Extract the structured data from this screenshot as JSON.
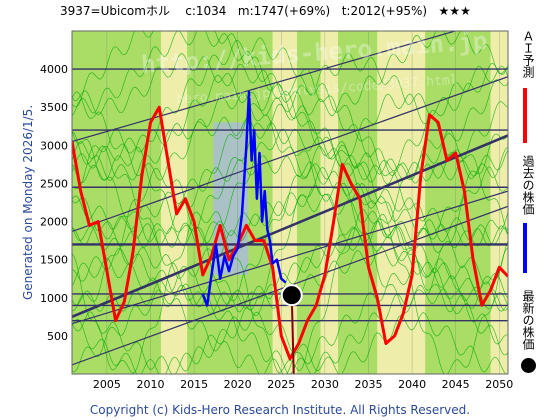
{
  "header": {
    "code_name": "3937=Ubicomホル",
    "current": "c:1034",
    "mid": "m:1747(+69%)",
    "target": "t:2012(+95%)",
    "rating": "★★★"
  },
  "generated": "Generated on Monday 2026/1/5.",
  "footer": "Copyright (c) Kids-Hero Research Institute. All Rights Reserved.",
  "watermark": {
    "line1": "http://kids-hero.main.jp",
    "line2": "hero.main.jp/analysis/code/3937.html"
  },
  "legend": [
    {
      "label": "ＡＩ予測",
      "color": "#ff0000",
      "kind": "bar"
    },
    {
      "label": "過去の株価",
      "color": "#0000ff",
      "kind": "bar"
    },
    {
      "label": "最新の株価",
      "color": "#000000",
      "kind": "dot"
    }
  ],
  "colors": {
    "plot_bg": "#aadd66",
    "band_light": "#eeeeaa",
    "band_blue": "#aabbdd",
    "green_line": "#00aa00",
    "trend": "#333366",
    "ai": "#ff0000",
    "past": "#0000ff"
  },
  "chart_data": {
    "type": "line",
    "xlim": [
      2001,
      2051
    ],
    "ylim": [
      0,
      4500
    ],
    "x_ticks": [
      2005,
      2010,
      2015,
      2020,
      2025,
      2030,
      2035,
      2040,
      2045,
      2050
    ],
    "y_ticks": [
      500,
      1000,
      1500,
      2000,
      2500,
      3000,
      3500,
      4000
    ],
    "light_bands": [
      [
        2011.2,
        2014.2
      ],
      [
        2024.0,
        2026.8
      ],
      [
        2029.5,
        2031.5
      ],
      [
        2036.0,
        2041.5
      ],
      [
        2049.0,
        2051.0
      ]
    ],
    "blue_band": [
      2017.2,
      2021.2
    ],
    "horizontal_lines": [
      700,
      900,
      1050,
      1700,
      2450,
      3200,
      4000
    ],
    "trend_lines": [
      {
        "from": [
          2001,
          3050
        ],
        "to": [
          2051,
          4700
        ],
        "width": 1.2
      },
      {
        "from": [
          2001,
          1870
        ],
        "to": [
          2051,
          3900
        ],
        "width": 1.2
      },
      {
        "from": [
          2001,
          750
        ],
        "to": [
          2051,
          3130
        ],
        "width": 2.6
      },
      {
        "from": [
          2001,
          660
        ],
        "to": [
          2051,
          2400
        ],
        "width": 1.2
      },
      {
        "from": [
          2001,
          120
        ],
        "to": [
          2051,
          2200
        ],
        "width": 1.2
      }
    ],
    "series": [
      {
        "name": "ＡＩ予測",
        "x": [
          2001,
          2002,
          2003,
          2004,
          2005,
          2006,
          2007,
          2008,
          2009,
          2010,
          2011,
          2012,
          2013,
          2014,
          2015,
          2016,
          2017,
          2018,
          2019,
          2020,
          2021,
          2022,
          2023,
          2024,
          2025,
          2026,
          2027,
          2028,
          2029,
          2030,
          2031,
          2032,
          2033,
          2034,
          2035,
          2036,
          2037,
          2038,
          2039,
          2040,
          2041,
          2042,
          2043,
          2044,
          2045,
          2046,
          2047,
          2048,
          2049,
          2050,
          2051
        ],
        "y": [
          3050,
          2400,
          1950,
          2000,
          1350,
          700,
          950,
          1600,
          2600,
          3300,
          3500,
          2800,
          2100,
          2300,
          2000,
          1300,
          1550,
          1950,
          1500,
          1700,
          1950,
          1750,
          1750,
          1400,
          500,
          200,
          400,
          700,
          900,
          1300,
          2000,
          2750,
          2500,
          2300,
          1400,
          1000,
          400,
          500,
          800,
          1300,
          2600,
          3400,
          3300,
          2800,
          2900,
          2400,
          1500,
          900,
          1100,
          1400,
          1280
        ]
      },
      {
        "name": "過去の株価",
        "x": [
          2016.0,
          2016.5,
          2017.0,
          2017.5,
          2018.0,
          2018.5,
          2019.0,
          2019.5,
          2020.0,
          2020.5,
          2021.0,
          2021.3,
          2021.6,
          2021.9,
          2022.2,
          2022.5,
          2022.8,
          2023.1,
          2023.4,
          2023.7,
          2024.0,
          2024.5,
          2025.0,
          2025.5
        ],
        "y": [
          1050,
          900,
          1300,
          1700,
          1250,
          1550,
          1350,
          1550,
          1650,
          2100,
          3000,
          3700,
          2800,
          3200,
          2300,
          2900,
          2000,
          2400,
          1900,
          1750,
          1450,
          1500,
          1250,
          1200
        ]
      }
    ],
    "latest_point": {
      "x": 2026.2,
      "y": 1034
    }
  }
}
